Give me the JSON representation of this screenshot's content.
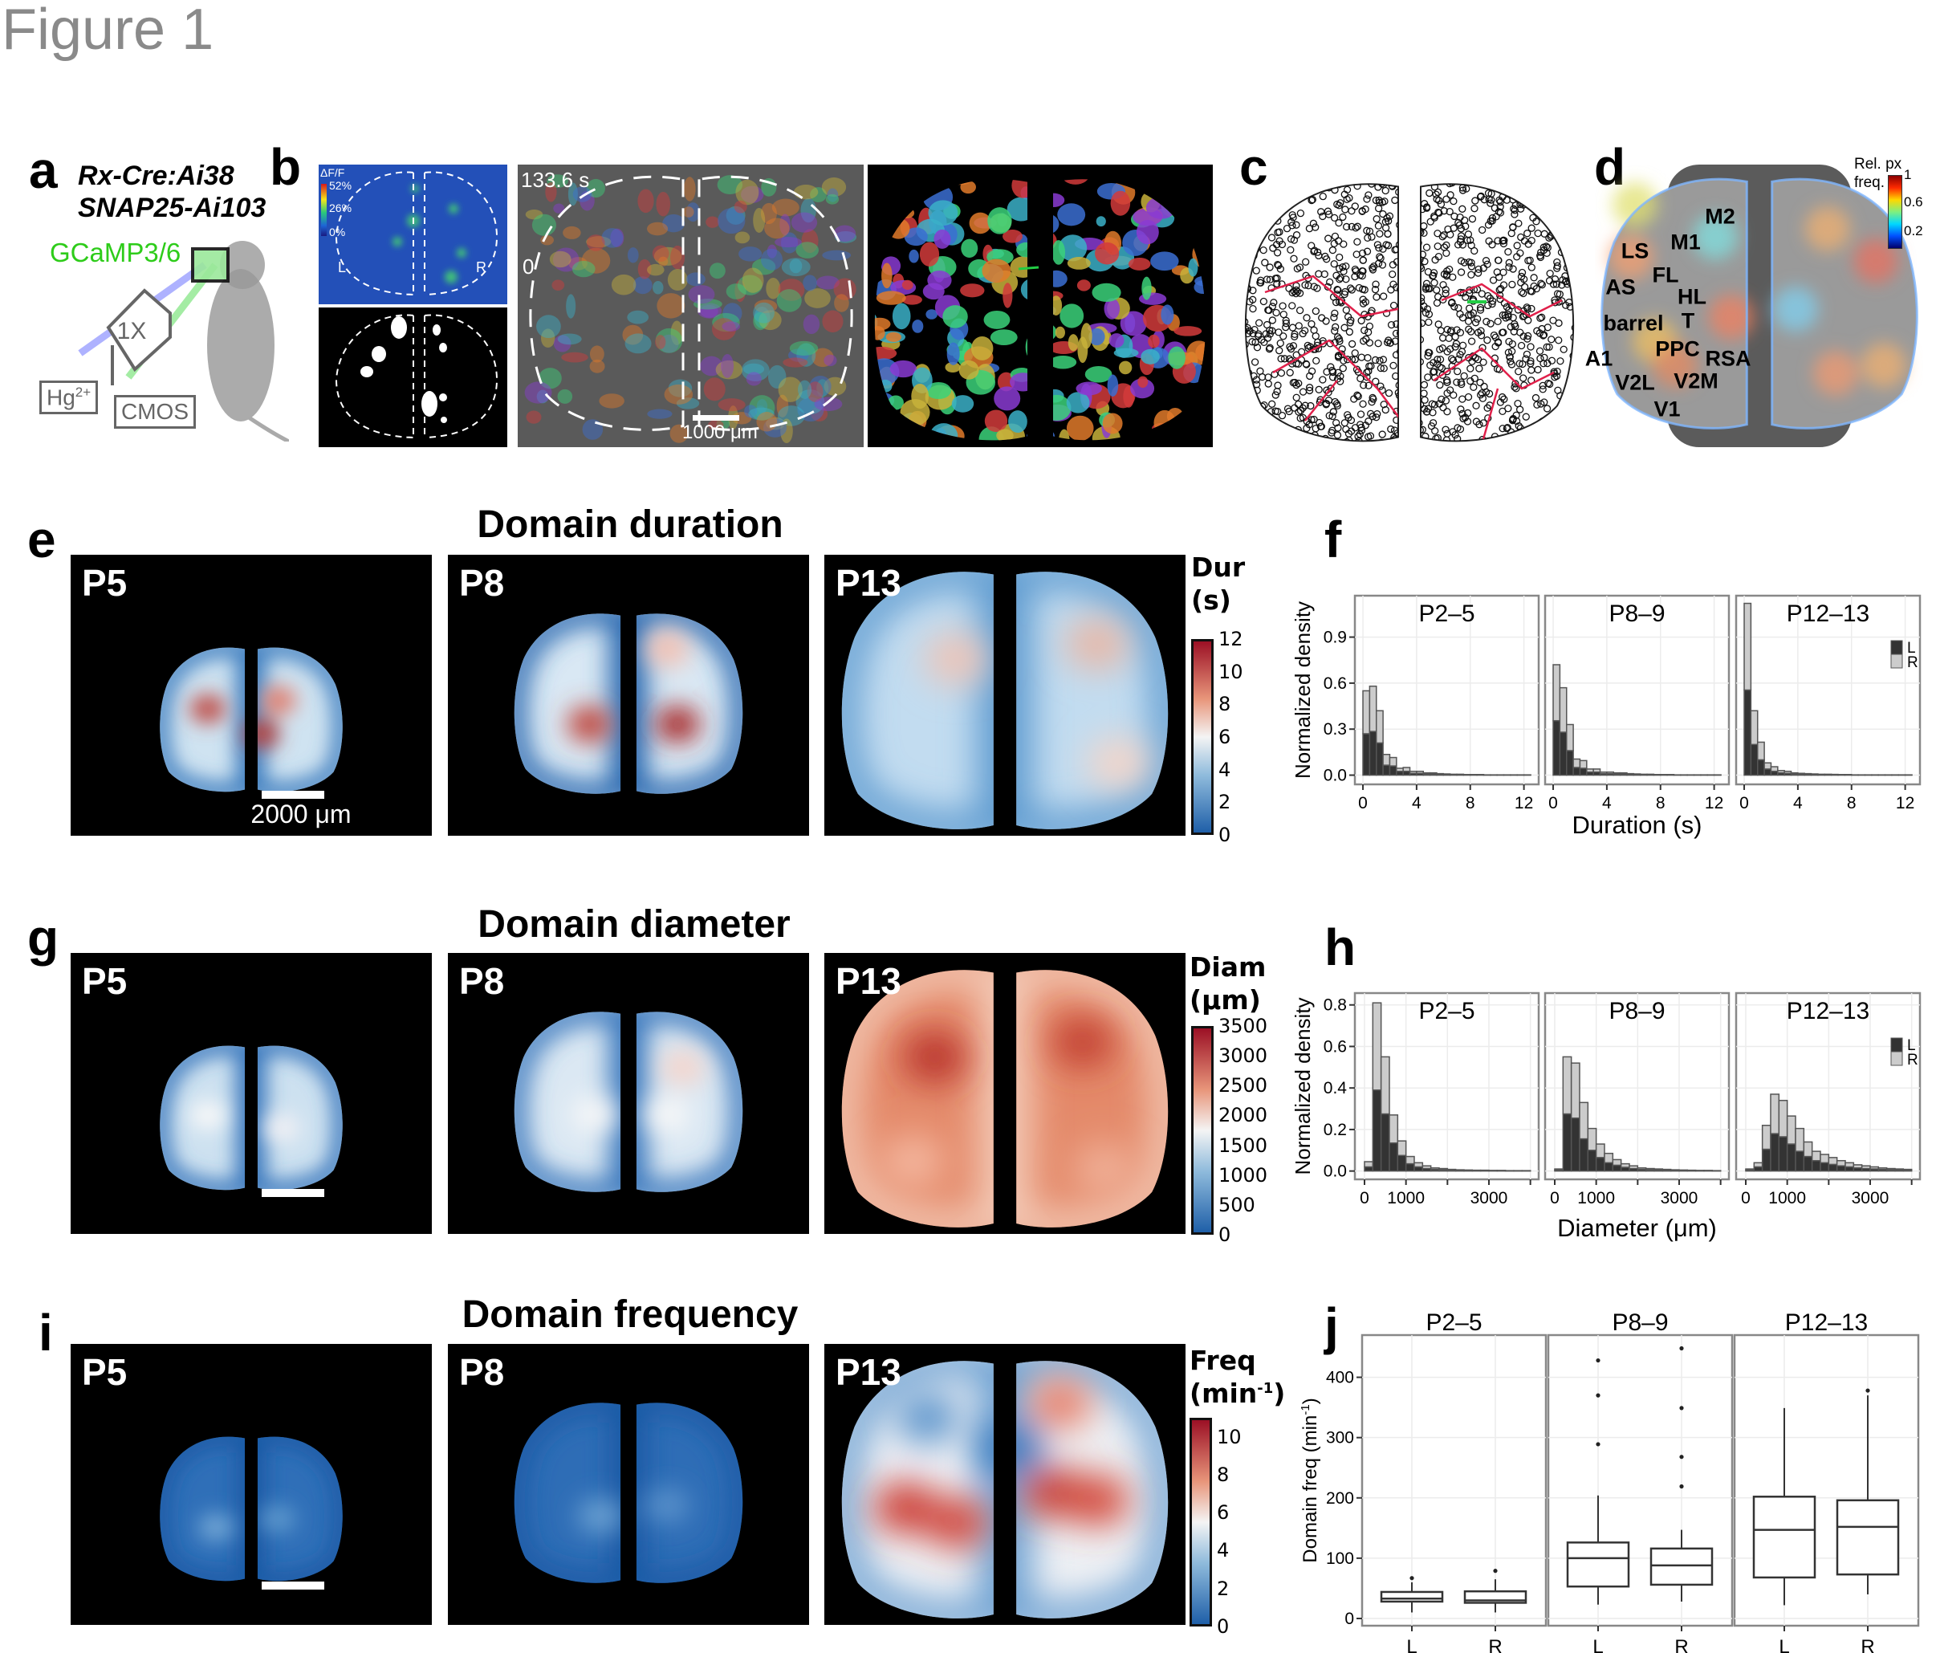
{
  "figure_title": "Figure 1",
  "panel_letters": {
    "a": "a",
    "b": "b",
    "c": "c",
    "d": "d",
    "e": "e",
    "f": "f",
    "g": "g",
    "h": "h",
    "i": "i",
    "j": "j"
  },
  "panel_a": {
    "line1": "Rx-Cre:Ai38",
    "line2": "SNAP25-Ai103",
    "indicator": "GCaMP3/6",
    "indicator_color": "#2ecc1a",
    "objective": "1X",
    "light_source": "Hg",
    "light_source_sup": "2+",
    "camera": "CMOS"
  },
  "panel_b": {
    "dff_label": "ΔF/F",
    "dff_ticks": [
      "52%",
      "26%",
      "0%"
    ],
    "left_label": "L",
    "right_label": "R",
    "time_max": "133.6 s",
    "time_min": "0",
    "scale_label": "1000 μm"
  },
  "panel_d": {
    "colorbar_title_1": "Rel. px",
    "colorbar_title_2": "freq.",
    "colorbar_ticks": [
      "1",
      "0.6",
      "0.2"
    ],
    "regions": [
      "M2",
      "M1",
      "LS",
      "FL",
      "AS",
      "HL",
      "barrel",
      "T",
      "PPC",
      "RSA",
      "A1",
      "V2L",
      "V2M",
      "V1"
    ]
  },
  "maps": {
    "ages": [
      "P5",
      "P8",
      "P13"
    ],
    "duration": {
      "title": "Domain duration",
      "cb_title_1": "Dur",
      "cb_title_2": "(s)",
      "cb_ticks": [
        "12",
        "10",
        "8",
        "6",
        "4",
        "2",
        "0"
      ],
      "scale_label": "2000 μm"
    },
    "diameter": {
      "title": "Domain diameter",
      "cb_title_1": "Diam",
      "cb_title_2": "(μm)",
      "cb_ticks": [
        "3500",
        "3000",
        "2500",
        "2000",
        "1500",
        "1000",
        "500",
        "0"
      ]
    },
    "frequency": {
      "title": "Domain frequency",
      "cb_title_1": "Freq",
      "cb_title_2": "(min",
      "cb_title_sup": "-1",
      "cb_title_3": ")",
      "cb_ticks": [
        "10",
        "8",
        "6",
        "4",
        "2",
        "0"
      ]
    },
    "colormap": {
      "low": "#1f5fa8",
      "mid": "#f4f4f4",
      "high": "#9b1025"
    }
  },
  "chart_data": [
    {
      "id": "f",
      "type": "bar",
      "stacked": true,
      "xlabel": "Duration (s)",
      "ylabel": "Normalized density",
      "facets": [
        "P2–5",
        "P8–9",
        "P12–13"
      ],
      "legend": [
        "L",
        "R"
      ],
      "legend_placement": "top-right of last facet",
      "colors": {
        "L": "#333333",
        "R": "#cccccc"
      },
      "bin_width": 0.5,
      "bin_start": 0,
      "xlim": [
        -0.6,
        13.1
      ],
      "ylim": [
        -0.06,
        1.17
      ],
      "xticks": [
        0,
        4,
        8,
        12
      ],
      "yticks": [
        0.0,
        0.3,
        0.6,
        0.9
      ],
      "ytick_labels": [
        "0.0",
        "0.3",
        "0.6",
        "0.9"
      ],
      "grid": true,
      "series": [
        {
          "facet": "P2–5",
          "L": [
            0.27,
            0.285,
            0.21,
            0.065,
            0.06,
            0.025,
            0.025,
            0.012,
            0.012,
            0.008,
            0.008,
            0.005,
            0.004,
            0.003,
            0.003,
            0.002,
            0.002,
            0.002,
            0.001,
            0.001,
            0.001,
            0.001,
            0.001,
            0.001,
            0.001
          ],
          "R": [
            0.28,
            0.295,
            0.21,
            0.07,
            0.055,
            0.02,
            0.025,
            0.013,
            0.013,
            0.007,
            0.007,
            0.005,
            0.004,
            0.003,
            0.003,
            0.002,
            0.002,
            0.002,
            0.001,
            0.001,
            0.001,
            0.001,
            0.001,
            0.001,
            0.001
          ]
        },
        {
          "facet": "P8–9",
          "L": [
            0.355,
            0.28,
            0.16,
            0.05,
            0.045,
            0.02,
            0.02,
            0.01,
            0.01,
            0.008,
            0.008,
            0.005,
            0.004,
            0.003,
            0.003,
            0.002,
            0.002,
            0.002,
            0.001,
            0.001,
            0.001,
            0.001,
            0.001,
            0.001,
            0.001
          ],
          "R": [
            0.365,
            0.29,
            0.17,
            0.055,
            0.05,
            0.02,
            0.02,
            0.01,
            0.01,
            0.007,
            0.007,
            0.005,
            0.004,
            0.003,
            0.003,
            0.002,
            0.002,
            0.002,
            0.001,
            0.001,
            0.001,
            0.001,
            0.001,
            0.001,
            0.001
          ]
        },
        {
          "facet": "P12–13",
          "L": [
            0.555,
            0.2,
            0.1,
            0.04,
            0.025,
            0.015,
            0.012,
            0.008,
            0.006,
            0.005,
            0.004,
            0.003,
            0.003,
            0.002,
            0.002,
            0.002,
            0.001,
            0.001,
            0.001,
            0.001,
            0.001,
            0.001,
            0.001,
            0.001,
            0.001
          ],
          "R": [
            0.565,
            0.22,
            0.115,
            0.04,
            0.03,
            0.015,
            0.013,
            0.007,
            0.006,
            0.005,
            0.004,
            0.003,
            0.003,
            0.003,
            0.002,
            0.002,
            0.001,
            0.001,
            0.001,
            0.001,
            0.001,
            0.001,
            0.001,
            0.001,
            0.001
          ]
        }
      ]
    },
    {
      "id": "h",
      "type": "bar",
      "stacked": true,
      "xlabel": "Diameter (μm)",
      "ylabel": "Normalized density",
      "facets": [
        "P2–5",
        "P8–9",
        "P12–13"
      ],
      "legend": [
        "L",
        "R"
      ],
      "legend_placement": "top-right of last facet",
      "colors": {
        "L": "#333333",
        "R": "#cccccc"
      },
      "bin_width": 200,
      "bin_start": 0,
      "xlim": [
        -232,
        4200
      ],
      "ylim": [
        -0.04,
        0.857
      ],
      "xticks": [
        0,
        1000,
        2000,
        3000,
        4000
      ],
      "xtick_labels": [
        "0",
        "1000",
        "",
        "3000",
        ""
      ],
      "yticks": [
        0.0,
        0.2,
        0.4,
        0.6,
        0.8
      ],
      "ytick_labels": [
        "0.0",
        "0.2",
        "0.4",
        "0.6",
        "0.8"
      ],
      "grid": true,
      "series": [
        {
          "facet": "P2–5",
          "L": [
            0.02,
            0.39,
            0.275,
            0.135,
            0.075,
            0.035,
            0.02,
            0.012,
            0.008,
            0.006,
            0.004,
            0.003,
            0.003,
            0.002,
            0.002,
            0.002,
            0.002,
            0.001,
            0.001,
            0.001
          ],
          "R": [
            0.025,
            0.42,
            0.275,
            0.135,
            0.07,
            0.035,
            0.02,
            0.013,
            0.007,
            0.006,
            0.004,
            0.003,
            0.002,
            0.002,
            0.002,
            0.001,
            0.001,
            0.001,
            0.001,
            0.001
          ]
        },
        {
          "facet": "P8–9",
          "L": [
            0.005,
            0.275,
            0.255,
            0.155,
            0.1,
            0.065,
            0.04,
            0.028,
            0.018,
            0.012,
            0.008,
            0.006,
            0.005,
            0.004,
            0.003,
            0.003,
            0.002,
            0.002,
            0.002,
            0.001
          ],
          "R": [
            0.005,
            0.275,
            0.265,
            0.175,
            0.105,
            0.065,
            0.045,
            0.027,
            0.017,
            0.013,
            0.007,
            0.006,
            0.005,
            0.004,
            0.003,
            0.002,
            0.002,
            0.001,
            0.001,
            0.001
          ]
        },
        {
          "facet": "P12–13",
          "L": [
            0.005,
            0.02,
            0.105,
            0.18,
            0.165,
            0.13,
            0.095,
            0.07,
            0.05,
            0.04,
            0.032,
            0.025,
            0.02,
            0.015,
            0.012,
            0.01,
            0.008,
            0.006,
            0.005,
            0.004
          ],
          "R": [
            0.005,
            0.02,
            0.115,
            0.19,
            0.175,
            0.135,
            0.11,
            0.07,
            0.045,
            0.04,
            0.033,
            0.025,
            0.02,
            0.015,
            0.013,
            0.01,
            0.007,
            0.006,
            0.005,
            0.004
          ]
        }
      ]
    },
    {
      "id": "j",
      "type": "box",
      "ylabel": "Domain freq (min",
      "ylabel_sup": "-1",
      "ylabel_end": ")",
      "facets": [
        "P2–5",
        "P8–9",
        "P12–13"
      ],
      "categories": [
        "L",
        "R"
      ],
      "ylim": [
        -12,
        470
      ],
      "yticks": [
        0,
        100,
        200,
        300,
        400
      ],
      "grid": true,
      "boxes": [
        {
          "facet": "P2–5",
          "group": "L",
          "whisker_low": 10,
          "q1": 28,
          "median": 33,
          "q3": 44,
          "whisker_high": 60,
          "outliers": [
            67
          ]
        },
        {
          "facet": "P2–5",
          "group": "R",
          "whisker_low": 10,
          "q1": 26,
          "median": 30,
          "q3": 45,
          "whisker_high": 65,
          "outliers": [
            79
          ]
        },
        {
          "facet": "P8–9",
          "group": "L",
          "whisker_low": 23,
          "q1": 53,
          "median": 100,
          "q3": 126,
          "whisker_high": 204,
          "outliers": [
            289,
            370,
            428
          ]
        },
        {
          "facet": "P8–9",
          "group": "R",
          "whisker_low": 28,
          "q1": 56,
          "median": 88,
          "q3": 116,
          "whisker_high": 147,
          "outliers": [
            219,
            268,
            349,
            448
          ]
        },
        {
          "facet": "P12–13",
          "group": "L",
          "whisker_low": 22,
          "q1": 68,
          "median": 147,
          "q3": 202,
          "whisker_high": 349,
          "outliers": []
        },
        {
          "facet": "P12–13",
          "group": "R",
          "whisker_low": 40,
          "q1": 73,
          "median": 152,
          "q3": 196,
          "whisker_high": 370,
          "outliers": [
            378
          ]
        }
      ]
    }
  ]
}
